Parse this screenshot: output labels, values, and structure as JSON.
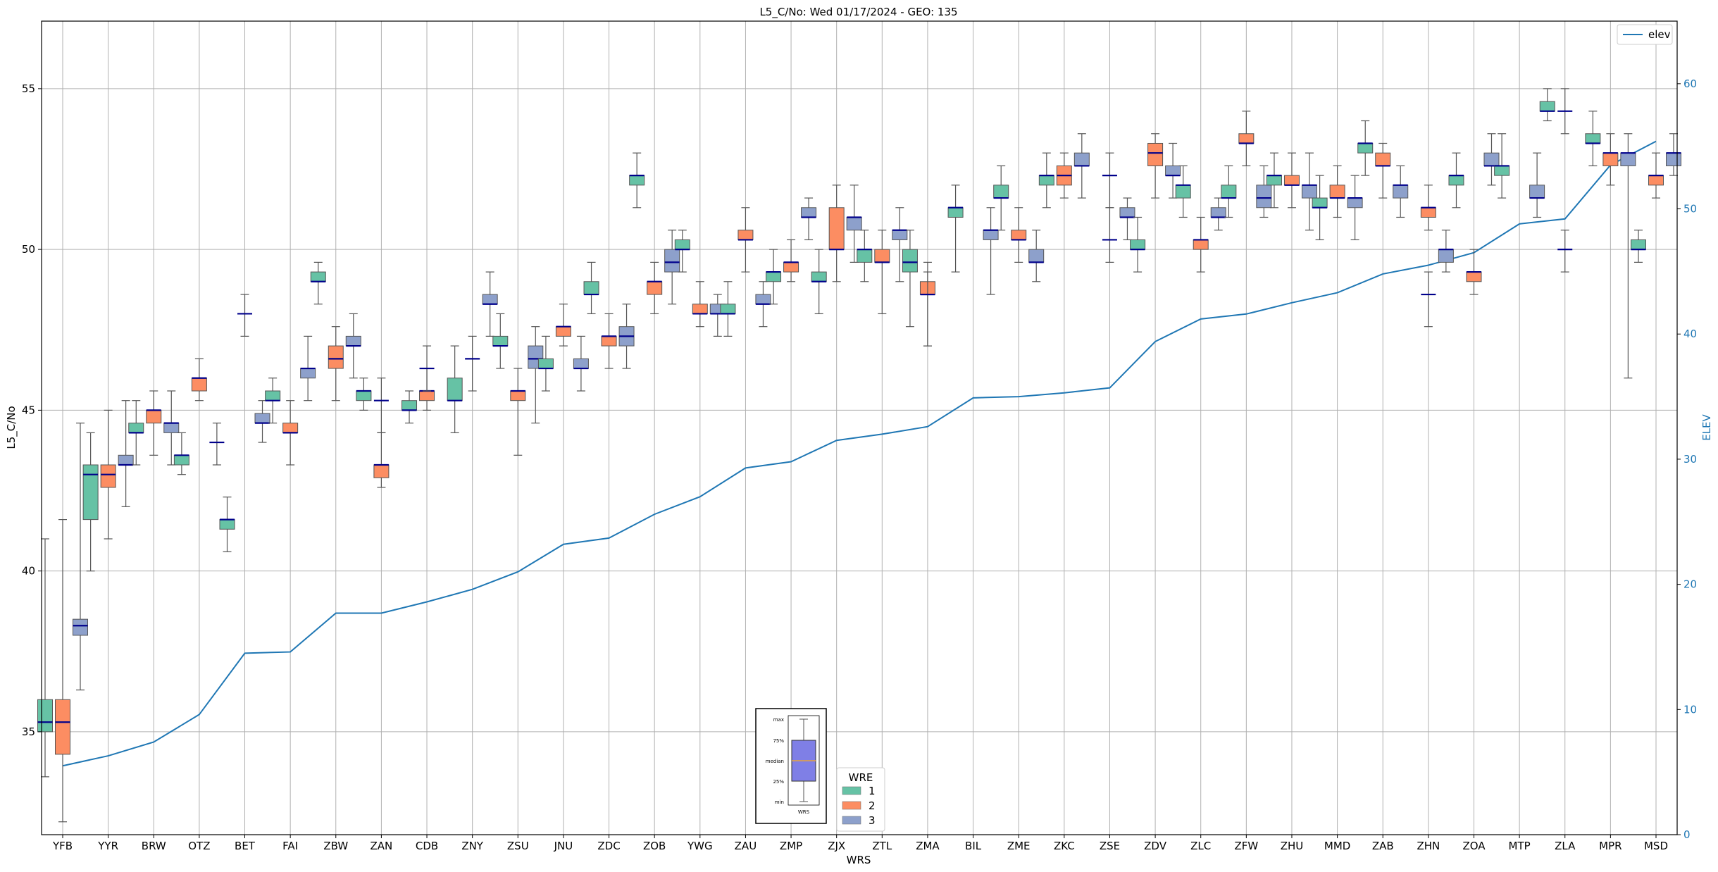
{
  "chart_data": {
    "type": "box",
    "title": "L5_C/No: Wed 01/17/2024 - GEO: 135",
    "xlabel": "WRS",
    "ylabel": "L5_C/No",
    "y2label": "ELEV",
    "ylim": [
      31.8,
      57.1
    ],
    "y2lim": [
      0,
      65
    ],
    "yticks": [
      35,
      40,
      45,
      50,
      55
    ],
    "y2ticks": [
      0,
      10,
      20,
      30,
      40,
      50,
      60
    ],
    "grid": true,
    "categories": [
      "YFB",
      "YYR",
      "BRW",
      "OTZ",
      "BET",
      "FAI",
      "ZBW",
      "ZAN",
      "CDB",
      "ZNY",
      "ZSU",
      "JNU",
      "ZDC",
      "ZOB",
      "YWG",
      "ZAU",
      "ZMP",
      "ZJX",
      "ZTL",
      "ZMA",
      "BIL",
      "ZME",
      "ZKC",
      "ZSE",
      "ZDV",
      "ZLC",
      "ZFW",
      "ZHU",
      "MMD",
      "ZAB",
      "ZHN",
      "ZOA",
      "MTP",
      "ZLA",
      "MPR",
      "MSD"
    ],
    "elev": {
      "name": "elev",
      "values": [
        5.5,
        6.3,
        7.4,
        9.6,
        14.5,
        14.6,
        17.7,
        17.7,
        18.6,
        19.6,
        21.0,
        23.2,
        23.7,
        25.6,
        27.0,
        29.3,
        29.8,
        31.5,
        32.0,
        32.6,
        34.9,
        35.0,
        35.3,
        35.7,
        39.4,
        41.2,
        41.6,
        42.5,
        43.3,
        44.8,
        45.5,
        46.5,
        48.8,
        49.2,
        53.5,
        55.4
      ],
      "color": "#1f77b4",
      "legend": "top-right"
    },
    "wre_legend": {
      "title": "WRE",
      "entries": [
        {
          "label": "1",
          "color": "#66c2a5"
        },
        {
          "label": "2",
          "color": "#fc8d62"
        },
        {
          "label": "3",
          "color": "#8da0cb"
        }
      ]
    },
    "median_color": "#00008b",
    "inset": {
      "labels": [
        "max",
        "75%",
        "median",
        "25%",
        "min"
      ],
      "xlabel": "WRS",
      "color": "#7f7fe6"
    },
    "boxes": [
      [
        0,
        1,
        33.6,
        35.0,
        35.3,
        36.0,
        41.0
      ],
      [
        0,
        2,
        32.2,
        34.3,
        35.3,
        36.0,
        41.6
      ],
      [
        0,
        3,
        36.3,
        38.0,
        38.3,
        38.5,
        44.6
      ],
      [
        1,
        1,
        40.0,
        41.6,
        43.0,
        43.3,
        44.3
      ],
      [
        1,
        2,
        41.0,
        42.6,
        43.0,
        43.3,
        45.0
      ],
      [
        1,
        3,
        42.0,
        43.3,
        43.3,
        43.6,
        45.3
      ],
      [
        2,
        1,
        43.3,
        44.3,
        44.3,
        44.6,
        45.3
      ],
      [
        2,
        2,
        43.6,
        44.6,
        45.0,
        45.0,
        45.6
      ],
      [
        2,
        3,
        43.3,
        44.3,
        44.6,
        44.6,
        45.6
      ],
      [
        3,
        1,
        43.0,
        43.3,
        43.6,
        43.6,
        44.3
      ],
      [
        3,
        2,
        45.3,
        45.6,
        46.0,
        46.0,
        46.6
      ],
      [
        3,
        3,
        43.3,
        44.0,
        44.0,
        44.0,
        44.6
      ],
      [
        4,
        1,
        40.6,
        41.3,
        41.6,
        41.6,
        42.3
      ],
      [
        4,
        3,
        44.0,
        44.6,
        44.6,
        44.9,
        45.3
      ],
      [
        4,
        null,
        47.3,
        48.0,
        48.0,
        48.0,
        48.6
      ],
      [
        5,
        1,
        44.6,
        45.3,
        45.3,
        45.6,
        46.0
      ],
      [
        5,
        2,
        43.3,
        44.3,
        44.3,
        44.6,
        45.3
      ],
      [
        5,
        3,
        45.3,
        46.0,
        46.3,
        46.3,
        47.3
      ],
      [
        6,
        1,
        48.3,
        49.0,
        49.0,
        49.3,
        49.6
      ],
      [
        6,
        2,
        45.3,
        46.3,
        46.6,
        47.0,
        47.6
      ],
      [
        6,
        3,
        46.0,
        47.0,
        47.0,
        47.3,
        48.0
      ],
      [
        7,
        1,
        45.0,
        45.3,
        45.6,
        45.6,
        46.0
      ],
      [
        7,
        2,
        42.6,
        42.9,
        43.3,
        43.3,
        44.3
      ],
      [
        7,
        null,
        44.3,
        45.3,
        45.3,
        45.3,
        46.0
      ],
      [
        8,
        1,
        44.6,
        45.0,
        45.0,
        45.3,
        45.6
      ],
      [
        8,
        2,
        45.0,
        45.3,
        45.6,
        45.6,
        46.3
      ],
      [
        8,
        null,
        45.6,
        46.3,
        46.3,
        46.3,
        47.0
      ],
      [
        9,
        1,
        44.3,
        45.3,
        45.3,
        46.0,
        47.0
      ],
      [
        9,
        null,
        45.6,
        46.6,
        46.6,
        46.6,
        47.3
      ],
      [
        9,
        3,
        47.3,
        48.3,
        48.3,
        48.6,
        49.3
      ],
      [
        10,
        1,
        46.3,
        47.0,
        47.0,
        47.3,
        48.0
      ],
      [
        10,
        2,
        43.6,
        45.3,
        45.6,
        45.6,
        46.3
      ],
      [
        10,
        3,
        44.6,
        46.3,
        46.6,
        47.0,
        47.6
      ],
      [
        11,
        1,
        45.6,
        46.3,
        46.3,
        46.6,
        47.3
      ],
      [
        11,
        2,
        47.0,
        47.3,
        47.6,
        47.6,
        48.3
      ],
      [
        11,
        3,
        45.6,
        46.3,
        46.3,
        46.6,
        47.3
      ],
      [
        12,
        1,
        48.0,
        48.6,
        48.6,
        49.0,
        49.6
      ],
      [
        12,
        2,
        46.3,
        47.0,
        47.3,
        47.3,
        48.0
      ],
      [
        12,
        3,
        46.3,
        47.0,
        47.3,
        47.6,
        48.3
      ],
      [
        13,
        1,
        51.3,
        52.0,
        52.3,
        52.3,
        53.0
      ],
      [
        13,
        2,
        48.0,
        48.6,
        49.0,
        49.0,
        49.6
      ],
      [
        13,
        3,
        48.3,
        49.3,
        49.6,
        50.0,
        50.6
      ],
      [
        14,
        1,
        49.3,
        50.0,
        50.0,
        50.3,
        50.6
      ],
      [
        14,
        2,
        47.6,
        48.0,
        48.0,
        48.3,
        49.0
      ],
      [
        14,
        3,
        47.3,
        48.0,
        48.0,
        48.3,
        48.6
      ],
      [
        15,
        1,
        47.3,
        48.0,
        48.0,
        48.3,
        49.0
      ],
      [
        15,
        2,
        49.3,
        50.3,
        50.3,
        50.6,
        51.3
      ],
      [
        15,
        3,
        47.6,
        48.3,
        48.3,
        48.6,
        49.0
      ],
      [
        16,
        1,
        48.3,
        49.0,
        49.3,
        49.3,
        50.0
      ],
      [
        16,
        2,
        49.0,
        49.3,
        49.6,
        49.6,
        50.3
      ],
      [
        16,
        3,
        50.3,
        51.0,
        51.0,
        51.3,
        51.6
      ],
      [
        17,
        1,
        48.0,
        49.0,
        49.0,
        49.3,
        50.0
      ],
      [
        17,
        2,
        49.0,
        50.0,
        50.0,
        51.3,
        52.0
      ],
      [
        17,
        3,
        49.6,
        50.6,
        51.0,
        51.0,
        52.0
      ],
      [
        18,
        1,
        49.0,
        49.6,
        50.0,
        50.0,
        50.6
      ],
      [
        18,
        2,
        48.0,
        49.6,
        49.6,
        50.0,
        50.6
      ],
      [
        18,
        3,
        49.0,
        50.3,
        50.6,
        50.6,
        51.3
      ],
      [
        19,
        1,
        47.6,
        49.3,
        49.6,
        50.0,
        50.6
      ],
      [
        19,
        2,
        47.0,
        48.6,
        48.6,
        49.0,
        49.6
      ],
      [
        19,
        null,
        47.0,
        48.6,
        48.6,
        48.6,
        49.3
      ],
      [
        20,
        1,
        49.3,
        51.0,
        51.3,
        51.3,
        52.0
      ],
      [
        21,
        1,
        50.6,
        51.6,
        51.6,
        52.0,
        52.6
      ],
      [
        21,
        2,
        49.6,
        50.3,
        50.3,
        50.6,
        51.3
      ],
      [
        21,
        3,
        49.0,
        49.6,
        49.6,
        50.0,
        50.6
      ],
      [
        20,
        3,
        48.6,
        50.3,
        50.6,
        50.6,
        51.3
      ],
      [
        22,
        1,
        51.3,
        52.0,
        52.3,
        52.3,
        53.0
      ],
      [
        22,
        2,
        51.6,
        52.0,
        52.3,
        52.6,
        53.0
      ],
      [
        22,
        3,
        51.6,
        52.6,
        52.6,
        53.0,
        53.6
      ],
      [
        23,
        null,
        49.6,
        50.3,
        50.3,
        50.3,
        51.3
      ],
      [
        23,
        null,
        51.3,
        52.3,
        52.3,
        52.3,
        53.0
      ],
      [
        23,
        3,
        50.3,
        51.0,
        51.0,
        51.3,
        51.6
      ],
      [
        24,
        1,
        49.3,
        50.0,
        50.0,
        50.3,
        51.0
      ],
      [
        24,
        2,
        51.6,
        52.6,
        53.0,
        53.3,
        53.6
      ],
      [
        24,
        3,
        51.6,
        52.3,
        52.3,
        52.6,
        53.3
      ],
      [
        25,
        1,
        51.0,
        51.6,
        52.0,
        52.0,
        52.6
      ],
      [
        25,
        2,
        49.3,
        50.0,
        50.3,
        50.3,
        51.0
      ],
      [
        25,
        3,
        50.6,
        51.0,
        51.0,
        51.3,
        51.6
      ],
      [
        26,
        1,
        51.0,
        51.6,
        51.6,
        52.0,
        52.6
      ],
      [
        26,
        2,
        52.6,
        53.3,
        53.3,
        53.6,
        54.3
      ],
      [
        26,
        3,
        51.0,
        51.3,
        51.6,
        52.0,
        52.6
      ],
      [
        27,
        1,
        51.3,
        52.0,
        52.3,
        52.3,
        53.0
      ],
      [
        27,
        2,
        51.3,
        52.0,
        52.0,
        52.3,
        53.0
      ],
      [
        27,
        3,
        50.6,
        51.6,
        52.0,
        52.0,
        53.0
      ],
      [
        28,
        1,
        50.3,
        51.3,
        51.3,
        51.6,
        52.3
      ],
      [
        28,
        2,
        51.0,
        51.6,
        51.6,
        52.0,
        52.6
      ],
      [
        28,
        3,
        50.3,
        51.3,
        51.6,
        51.6,
        52.3
      ],
      [
        29,
        1,
        52.3,
        53.0,
        53.3,
        53.3,
        54.0
      ],
      [
        29,
        2,
        51.6,
        52.6,
        52.6,
        53.0,
        53.3
      ],
      [
        29,
        3,
        51.0,
        51.6,
        52.0,
        52.0,
        52.6
      ],
      [
        30,
        2,
        50.6,
        51.0,
        51.3,
        51.3,
        52.0
      ],
      [
        30,
        3,
        49.3,
        49.6,
        50.0,
        50.0,
        50.6
      ],
      [
        30,
        null,
        47.6,
        48.6,
        48.6,
        48.6,
        49.3
      ],
      [
        31,
        1,
        51.3,
        52.0,
        52.3,
        52.3,
        53.0
      ],
      [
        31,
        2,
        48.6,
        49.0,
        49.3,
        49.3,
        50.0
      ],
      [
        31,
        3,
        52.0,
        52.6,
        52.6,
        53.0,
        53.6
      ],
      [
        32,
        1,
        51.6,
        52.3,
        52.6,
        52.6,
        53.6
      ],
      [
        32,
        3,
        51.0,
        51.6,
        51.6,
        52.0,
        53.0
      ],
      [
        33,
        1,
        54.0,
        54.3,
        54.3,
        54.6,
        55.0
      ],
      [
        33,
        null,
        53.6,
        54.3,
        54.3,
        54.3,
        55.0
      ],
      [
        33,
        null,
        49.3,
        50.0,
        50.0,
        50.0,
        50.6
      ],
      [
        34,
        1,
        52.6,
        53.3,
        53.3,
        53.6,
        54.3
      ],
      [
        34,
        2,
        52.0,
        52.6,
        53.0,
        53.0,
        53.6
      ],
      [
        34,
        3,
        46.0,
        52.6,
        53.0,
        53.0,
        53.6
      ],
      [
        35,
        1,
        49.6,
        50.0,
        50.0,
        50.3,
        50.6
      ],
      [
        35,
        2,
        51.6,
        52.0,
        52.3,
        52.3,
        53.0
      ],
      [
        35,
        3,
        52.3,
        52.6,
        53.0,
        53.0,
        53.6
      ]
    ]
  }
}
